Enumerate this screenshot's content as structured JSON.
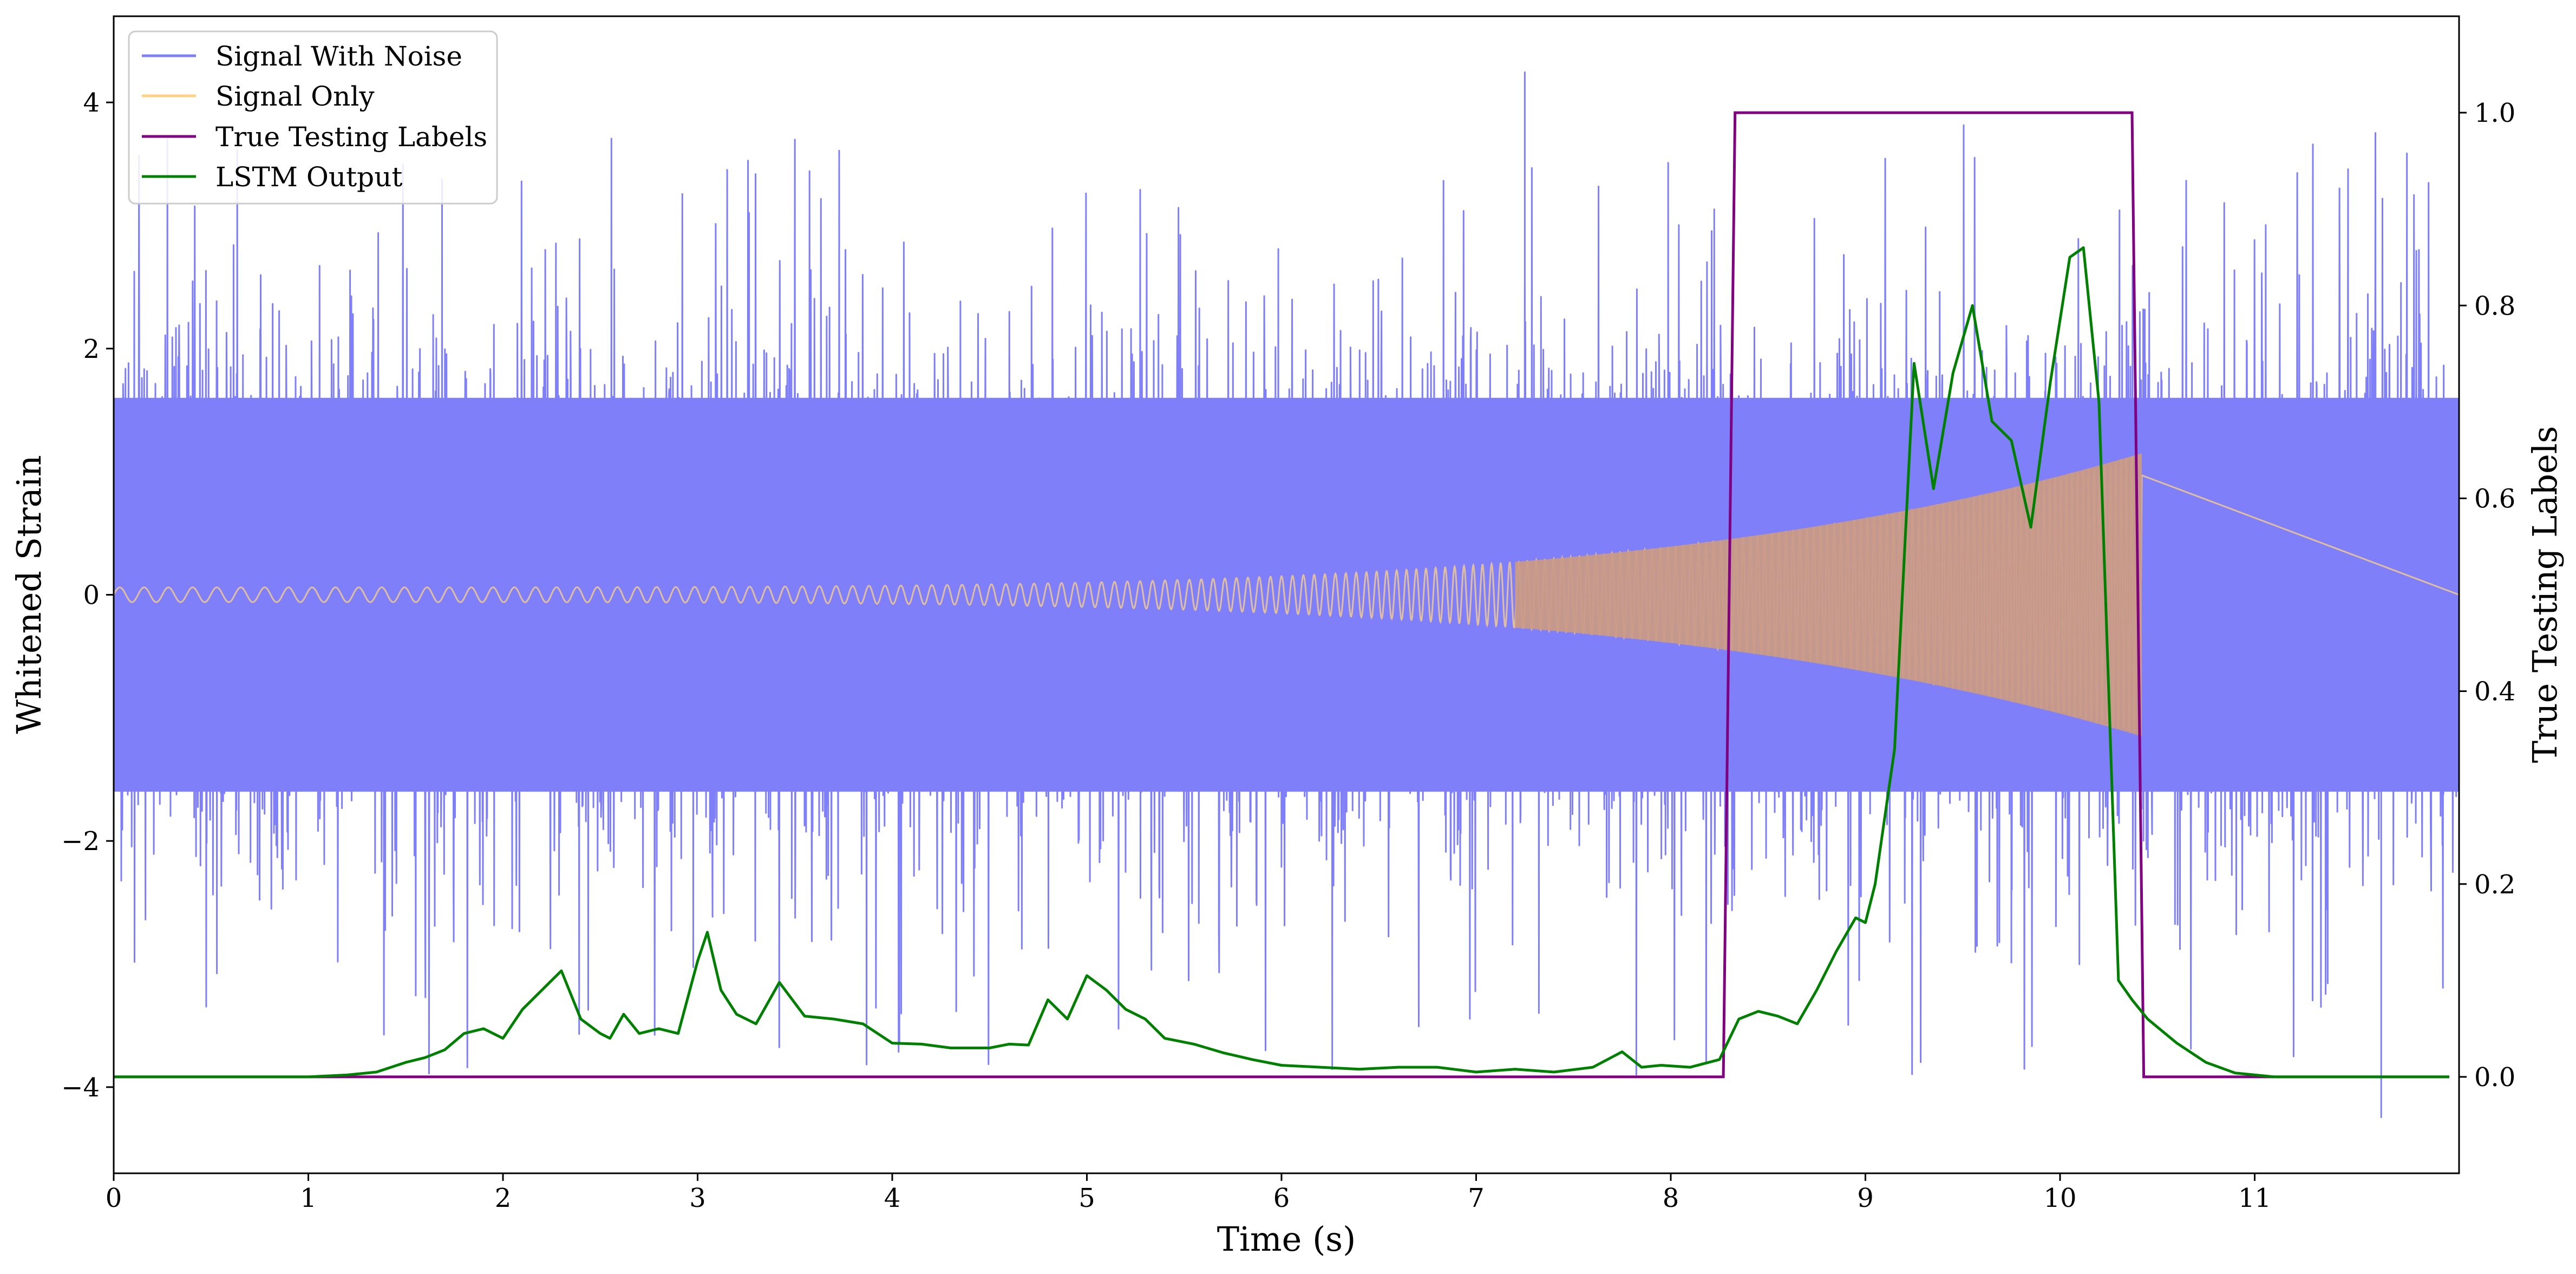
{
  "chart_data": {
    "type": "line",
    "title": "",
    "xlabel": "Time (s)",
    "ylabel": "Whitened Strain",
    "y2label": "True Testing Labels",
    "xlim": [
      0,
      12.05
    ],
    "ylim": [
      -4.7,
      4.7
    ],
    "y2lim": [
      -0.1,
      1.1
    ],
    "xticks": [
      0,
      1,
      2,
      3,
      4,
      5,
      6,
      7,
      8,
      9,
      10,
      11
    ],
    "yticks": [
      -4,
      -2,
      0,
      2,
      4
    ],
    "y2ticks": [
      0.0,
      0.2,
      0.4,
      0.6,
      0.8,
      1.0
    ],
    "xtick_labels": [
      "0",
      "1",
      "2",
      "3",
      "4",
      "5",
      "6",
      "7",
      "8",
      "9",
      "10",
      "11"
    ],
    "ytick_labels": [
      "−4",
      "−2",
      "0",
      "2",
      "4"
    ],
    "y2tick_labels": [
      "0.0",
      "0.2",
      "0.4",
      "0.6",
      "0.8",
      "1.0"
    ],
    "grid": false,
    "legend_position": "top-left",
    "legend": [
      {
        "name": "Signal With Noise",
        "color": "#7f7ff9"
      },
      {
        "name": "Signal Only",
        "color": "#ffd281"
      },
      {
        "name": "True Testing Labels",
        "color": "#800080"
      },
      {
        "name": "LSTM Output",
        "color": "#008000"
      }
    ],
    "signal_with_noise": {
      "axis": "left",
      "color": "#7f7ff9",
      "x_range": [
        0,
        12.05
      ],
      "typical_band": [
        -1.6,
        1.6
      ],
      "peak_range": [
        -4.25,
        4.25
      ],
      "description_values": {
        "max_peak_x": 7.25,
        "max_peak_y": 4.25,
        "min_peak_x": 11.65,
        "min_peak_y": -4.25
      }
    },
    "signal_only": {
      "axis": "left",
      "color": "#ffd281",
      "chirp_start_x": 0,
      "chirp_end_x": 10.42,
      "amplitude_start": 0.06,
      "amplitude_end": 1.15
    },
    "true_testing_labels": {
      "axis": "right",
      "color": "#800080",
      "x": [
        0,
        8.27,
        8.33,
        10.37,
        10.43,
        12.0
      ],
      "y": [
        0,
        0,
        1,
        1,
        0,
        0
      ]
    },
    "lstm_output": {
      "axis": "right",
      "color": "#008000",
      "x": [
        0,
        0.8,
        1.0,
        1.2,
        1.35,
        1.5,
        1.6,
        1.7,
        1.8,
        1.9,
        2.0,
        2.1,
        2.2,
        2.3,
        2.4,
        2.5,
        2.55,
        2.62,
        2.7,
        2.8,
        2.9,
        3.0,
        3.05,
        3.12,
        3.2,
        3.3,
        3.42,
        3.55,
        3.7,
        3.85,
        4.0,
        4.15,
        4.3,
        4.5,
        4.6,
        4.7,
        4.8,
        4.9,
        5.0,
        5.1,
        5.2,
        5.3,
        5.4,
        5.55,
        5.7,
        5.85,
        6.0,
        6.2,
        6.4,
        6.6,
        6.8,
        7.0,
        7.2,
        7.4,
        7.6,
        7.75,
        7.85,
        7.95,
        8.1,
        8.25,
        8.35,
        8.45,
        8.55,
        8.65,
        8.75,
        8.85,
        8.95,
        9.0,
        9.05,
        9.15,
        9.25,
        9.35,
        9.45,
        9.55,
        9.65,
        9.75,
        9.85,
        9.95,
        10.05,
        10.12,
        10.2,
        10.3,
        10.37,
        10.45,
        10.6,
        10.75,
        10.9,
        11.1,
        11.5,
        12.0
      ],
      "y": [
        0.0,
        0.0,
        0.0,
        0.002,
        0.005,
        0.015,
        0.02,
        0.028,
        0.045,
        0.05,
        0.04,
        0.07,
        0.09,
        0.11,
        0.06,
        0.045,
        0.04,
        0.065,
        0.045,
        0.05,
        0.045,
        0.12,
        0.15,
        0.09,
        0.065,
        0.055,
        0.098,
        0.063,
        0.06,
        0.055,
        0.035,
        0.034,
        0.03,
        0.03,
        0.034,
        0.033,
        0.08,
        0.06,
        0.105,
        0.09,
        0.07,
        0.06,
        0.04,
        0.034,
        0.025,
        0.018,
        0.012,
        0.01,
        0.008,
        0.01,
        0.01,
        0.005,
        0.008,
        0.005,
        0.01,
        0.026,
        0.01,
        0.012,
        0.01,
        0.018,
        0.06,
        0.068,
        0.063,
        0.055,
        0.09,
        0.13,
        0.165,
        0.16,
        0.2,
        0.34,
        0.74,
        0.61,
        0.73,
        0.8,
        0.68,
        0.66,
        0.57,
        0.72,
        0.85,
        0.86,
        0.7,
        0.1,
        0.08,
        0.06,
        0.035,
        0.015,
        0.004,
        0.0,
        0.0,
        0.0
      ]
    }
  }
}
